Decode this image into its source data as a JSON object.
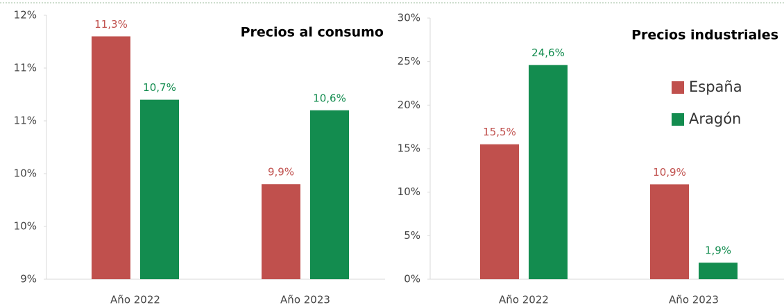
{
  "chart_data": [
    {
      "type": "bar",
      "title": "Precios al consumo",
      "categories": [
        "Año 2022",
        "Año 2023"
      ],
      "series": [
        {
          "color": "#c0504d",
          "values": [
            11.3,
            9.9
          ],
          "value_labels": [
            "11,3%",
            "9,9%"
          ]
        },
        {
          "color": "#138c4f",
          "values": [
            10.7,
            10.6
          ],
          "value_labels": [
            "10,7%",
            "10,6%"
          ]
        }
      ],
      "ylim": [
        9,
        11.5
      ],
      "yticks": [
        {
          "value": 9,
          "label": "9%"
        },
        {
          "value": 9.5,
          "label": "10%"
        },
        {
          "value": 10,
          "label": "10%"
        },
        {
          "value": 10.5,
          "label": "11%"
        },
        {
          "value": 11,
          "label": "11%"
        },
        {
          "value": 11.5,
          "label": "12%"
        }
      ]
    },
    {
      "type": "bar",
      "title": "Precios industriales",
      "categories": [
        "Año 2022",
        "Año 2023"
      ],
      "series": [
        {
          "name": "España",
          "color": "#c0504d",
          "values": [
            15.5,
            10.9
          ],
          "value_labels": [
            "15,5%",
            "10,9%"
          ]
        },
        {
          "name": "Aragón",
          "color": "#138c4f",
          "values": [
            24.6,
            1.9
          ],
          "value_labels": [
            "24,6%",
            "1,9%"
          ]
        }
      ],
      "ylim": [
        0,
        30
      ],
      "yticks": [
        {
          "value": 0,
          "label": "0%"
        },
        {
          "value": 5,
          "label": "5%"
        },
        {
          "value": 10,
          "label": "10%"
        },
        {
          "value": 15,
          "label": "15%"
        },
        {
          "value": 20,
          "label": "20%"
        },
        {
          "value": 25,
          "label": "25%"
        },
        {
          "value": 30,
          "label": "30%"
        }
      ],
      "legend": "right"
    }
  ]
}
